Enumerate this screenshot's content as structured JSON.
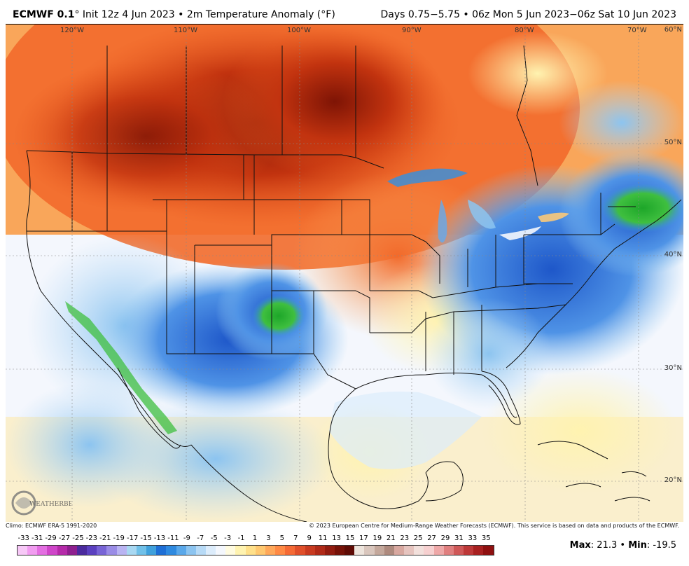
{
  "header": {
    "model": "ECMWF 0.1",
    "init": "° Init 12z 4 Jun 2023 • 2m Temperature Anomaly (°F)",
    "period": "Days 0.75−5.75 • 06z Mon 5 Jun 2023−06z Sat 10 Jun 2023"
  },
  "map": {
    "longitude_labels": [
      "120°W",
      "110°W",
      "100°W",
      "90°W",
      "80°W",
      "70°W",
      "60°N"
    ],
    "latitude_labels": [
      "50°N",
      "40°N",
      "30°N",
      "20°N"
    ],
    "logo_text": "WEATHERBELL"
  },
  "footer": {
    "climo": "Climo: ECMWF ERA-5 1991-2020",
    "copyright": "© 2023 European Centre for Medium-Range Weather Forecasts (ECMWF). This service is based on data and products of the ECMWF.",
    "max_label": "Max",
    "max_value": "21.3",
    "min_label": "Min",
    "min_value": "-19.5"
  },
  "scale": {
    "ticks": [
      "-33",
      "-31",
      "-29",
      "-27",
      "-25",
      "-23",
      "-21",
      "-19",
      "-17",
      "-15",
      "-13",
      "-11",
      "-9",
      "-7",
      "-5",
      "-3",
      "-1",
      "1",
      "3",
      "5",
      "7",
      "9",
      "11",
      "13",
      "15",
      "17",
      "19",
      "21",
      "23",
      "25",
      "27",
      "29",
      "31",
      "33",
      "35"
    ],
    "colors": [
      "#f7c8f7",
      "#f19cf0",
      "#e36ee1",
      "#cf45c9",
      "#b52aa9",
      "#8e1f8f",
      "#4b2a9e",
      "#5b40c0",
      "#7864d6",
      "#9a8ce6",
      "#b9b4f2",
      "#a8d8f2",
      "#70c0e8",
      "#3fa0dc",
      "#1e6fd6",
      "#2f8ae0",
      "#5aa8ea",
      "#8cc4f0",
      "#b7daf6",
      "#dcecfb",
      "#f4f7fd",
      "#fffbe0",
      "#fff3b0",
      "#ffe08a",
      "#ffc870",
      "#ffa85a",
      "#ff8a45",
      "#f56a35",
      "#e04f2a",
      "#c83a20",
      "#b02a18",
      "#921c10",
      "#761208",
      "#5e0b05",
      "#ede4dc",
      "#d9c6bd",
      "#c4a89c",
      "#ae8a7e",
      "#d8a8a0",
      "#e6c4bf",
      "#f2e0dc",
      "#f6d0d0",
      "#eea8a8",
      "#e07f7f",
      "#cf5858",
      "#bd3838",
      "#a82020",
      "#8f1010"
    ]
  }
}
